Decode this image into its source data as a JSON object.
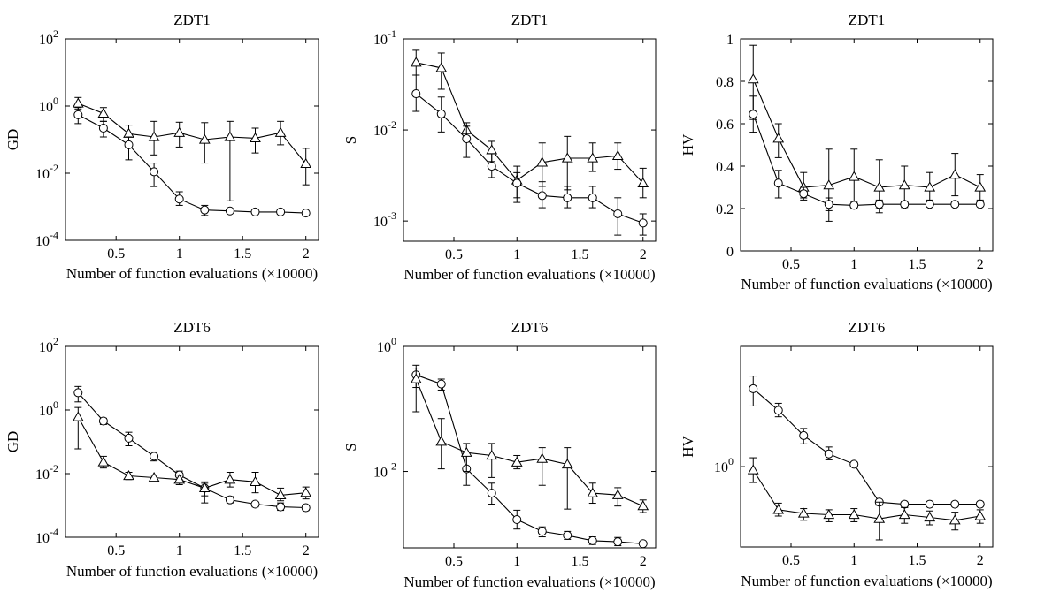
{
  "chart_data": [
    {
      "type": "line",
      "title": "ZDT1",
      "xlabel": "Number of function evaluations (×10000)",
      "ylabel": "GD",
      "yscale": "log",
      "xlim": [
        0.1,
        2.1
      ],
      "ylim": [
        0.0001,
        100
      ],
      "xticks": [
        {
          "v": 0.5,
          "label": "0.5"
        },
        {
          "v": 1,
          "label": "1"
        },
        {
          "v": 1.5,
          "label": "1.5"
        },
        {
          "v": 2,
          "label": "2"
        }
      ],
      "yticks": [
        {
          "v": 0.0001,
          "base": "10",
          "exp": "-4"
        },
        {
          "v": 0.01,
          "base": "10",
          "exp": "-2"
        },
        {
          "v": 1,
          "base": "10",
          "exp": "0"
        },
        {
          "v": 100,
          "base": "10",
          "exp": "2"
        }
      ],
      "x": [
        0.2,
        0.4,
        0.6,
        0.8,
        1.0,
        1.2,
        1.4,
        1.6,
        1.8,
        2.0
      ],
      "series": [
        {
          "marker": "triangle",
          "values": [
            1.2,
            0.6,
            0.15,
            0.12,
            0.16,
            0.1,
            0.12,
            0.11,
            0.16,
            0.019
          ],
          "err_low": [
            0.8,
            0.35,
            0.08,
            0.035,
            0.06,
            0.02,
            0.0015,
            0.04,
            0.07,
            0.0045
          ],
          "err_high": [
            1.8,
            0.9,
            0.27,
            0.35,
            0.33,
            0.32,
            0.35,
            0.22,
            0.35,
            0.055
          ]
        },
        {
          "marker": "circle",
          "values": [
            0.55,
            0.22,
            0.07,
            0.011,
            0.0017,
            0.0008,
            0.00075,
            0.0007,
            0.0007,
            0.00065
          ],
          "err_low": [
            0.3,
            0.12,
            0.025,
            0.004,
            0.0011,
            0.00055,
            0.00067,
            0.00065,
            0.00065,
            0.0006
          ],
          "err_high": [
            0.9,
            0.35,
            0.12,
            0.02,
            0.0028,
            0.0011,
            0.00085,
            0.00075,
            0.00075,
            0.0007
          ]
        }
      ]
    },
    {
      "type": "line",
      "title": "ZDT1",
      "xlabel": "Number of function evaluations (×10000)",
      "ylabel": "S",
      "yscale": "log",
      "xlim": [
        0.1,
        2.1
      ],
      "ylim": [
        0.0006,
        0.1
      ],
      "xticks": [
        {
          "v": 0.5,
          "label": "0.5"
        },
        {
          "v": 1,
          "label": "1"
        },
        {
          "v": 1.5,
          "label": "1.5"
        },
        {
          "v": 2,
          "label": "2"
        }
      ],
      "yticks": [
        {
          "v": 0.001,
          "base": "10",
          "exp": "-3"
        },
        {
          "v": 0.01,
          "base": "10",
          "exp": "-2"
        },
        {
          "v": 0.1,
          "base": "10",
          "exp": "-1"
        }
      ],
      "x": [
        0.2,
        0.4,
        0.6,
        0.8,
        1.0,
        1.2,
        1.4,
        1.6,
        1.8,
        2.0
      ],
      "series": [
        {
          "marker": "triangle",
          "values": [
            0.055,
            0.048,
            0.01,
            0.006,
            0.0028,
            0.0044,
            0.0049,
            0.0049,
            0.0052,
            0.0026
          ],
          "err_low": [
            0.04,
            0.028,
            0.0078,
            0.0045,
            0.0018,
            0.0024,
            0.0022,
            0.0035,
            0.0037,
            0.0018
          ],
          "err_high": [
            0.075,
            0.07,
            0.012,
            0.0075,
            0.004,
            0.0072,
            0.0085,
            0.0072,
            0.0072,
            0.0038
          ]
        },
        {
          "marker": "circle",
          "values": [
            0.025,
            0.015,
            0.008,
            0.004,
            0.0026,
            0.0019,
            0.0018,
            0.0018,
            0.0012,
            0.00095
          ],
          "err_low": [
            0.016,
            0.0095,
            0.005,
            0.003,
            0.0016,
            0.0014,
            0.0014,
            0.0014,
            0.0007,
            0.0007
          ],
          "err_high": [
            0.04,
            0.023,
            0.011,
            0.0055,
            0.0034,
            0.0027,
            0.0024,
            0.0024,
            0.0018,
            0.0012
          ]
        }
      ]
    },
    {
      "type": "line",
      "title": "ZDT1",
      "xlabel": "Number of function evaluations (×10000)",
      "ylabel": "HV",
      "yscale": "linear",
      "xlim": [
        0.1,
        2.1
      ],
      "ylim": [
        0,
        1
      ],
      "xticks": [
        {
          "v": 0.5,
          "label": "0.5"
        },
        {
          "v": 1,
          "label": "1"
        },
        {
          "v": 1.5,
          "label": "1.5"
        },
        {
          "v": 2,
          "label": "2"
        }
      ],
      "yticks": [
        {
          "v": 0,
          "label": "0"
        },
        {
          "v": 0.2,
          "label": "0.2"
        },
        {
          "v": 0.4,
          "label": "0.4"
        },
        {
          "v": 0.6,
          "label": "0.6"
        },
        {
          "v": 0.8,
          "label": "0.8"
        },
        {
          "v": 1,
          "label": "1"
        }
      ],
      "x": [
        0.2,
        0.4,
        0.6,
        0.8,
        1.0,
        1.2,
        1.4,
        1.6,
        1.8,
        2.0
      ],
      "series": [
        {
          "marker": "triangle",
          "values": [
            0.81,
            0.53,
            0.3,
            0.31,
            0.35,
            0.3,
            0.31,
            0.3,
            0.36,
            0.3
          ],
          "err_low": [
            0.62,
            0.44,
            0.25,
            0.14,
            0.22,
            0.18,
            0.23,
            0.24,
            0.26,
            0.24
          ],
          "err_high": [
            0.97,
            0.6,
            0.37,
            0.48,
            0.48,
            0.43,
            0.4,
            0.37,
            0.46,
            0.36
          ]
        },
        {
          "marker": "circle",
          "values": [
            0.645,
            0.32,
            0.27,
            0.22,
            0.215,
            0.22,
            0.22,
            0.22,
            0.22,
            0.22
          ],
          "err_low": [
            0.56,
            0.25,
            0.24,
            0.19,
            0.2,
            0.2,
            0.205,
            0.21,
            0.21,
            0.21
          ],
          "err_high": [
            0.73,
            0.38,
            0.3,
            0.25,
            0.23,
            0.24,
            0.235,
            0.23,
            0.23,
            0.23
          ]
        }
      ]
    },
    {
      "type": "line",
      "title": "ZDT6",
      "xlabel": "Number of function evaluations (×10000)",
      "ylabel": "GD",
      "yscale": "log",
      "xlim": [
        0.1,
        2.1
      ],
      "ylim": [
        0.0001,
        100
      ],
      "xticks": [
        {
          "v": 0.5,
          "label": "0.5"
        },
        {
          "v": 1,
          "label": "1"
        },
        {
          "v": 1.5,
          "label": "1.5"
        },
        {
          "v": 2,
          "label": "2"
        }
      ],
      "yticks": [
        {
          "v": 0.0001,
          "base": "10",
          "exp": "-4"
        },
        {
          "v": 0.01,
          "base": "10",
          "exp": "-2"
        },
        {
          "v": 1,
          "base": "10",
          "exp": "0"
        },
        {
          "v": 100,
          "base": "10",
          "exp": "2"
        }
      ],
      "x": [
        0.2,
        0.4,
        0.6,
        0.8,
        1.0,
        1.2,
        1.4,
        1.6,
        1.8,
        2.0
      ],
      "series": [
        {
          "marker": "circle",
          "values": [
            3.5,
            0.45,
            0.13,
            0.035,
            0.009,
            0.0035,
            0.0015,
            0.0011,
            0.0009,
            0.00085
          ],
          "err_low": [
            1.8,
            0.35,
            0.075,
            0.025,
            0.0065,
            0.002,
            0.0012,
            0.0009,
            0.0007,
            0.0007
          ],
          "err_high": [
            5.5,
            0.55,
            0.2,
            0.048,
            0.012,
            0.005,
            0.0019,
            0.0013,
            0.0012,
            0.001
          ]
        },
        {
          "marker": "triangle",
          "values": [
            0.6,
            0.023,
            0.0085,
            0.0075,
            0.0065,
            0.0035,
            0.0065,
            0.0055,
            0.0021,
            0.0025
          ],
          "err_low": [
            0.06,
            0.015,
            0.0065,
            0.006,
            0.0045,
            0.0012,
            0.0038,
            0.0025,
            0.0014,
            0.0016
          ],
          "err_high": [
            1.2,
            0.035,
            0.011,
            0.009,
            0.009,
            0.0055,
            0.011,
            0.011,
            0.0035,
            0.0038
          ]
        }
      ]
    },
    {
      "type": "line",
      "title": "ZDT6",
      "xlabel": "Number of function evaluations (×10000)",
      "ylabel": "S",
      "yscale": "log",
      "xlim": [
        0.1,
        2.1
      ],
      "ylim": [
        0.0006,
        1
      ],
      "xticks": [
        {
          "v": 0.5,
          "label": "0.5"
        },
        {
          "v": 1,
          "label": "1"
        },
        {
          "v": 1.5,
          "label": "1.5"
        },
        {
          "v": 2,
          "label": "2"
        }
      ],
      "yticks": [
        {
          "v": 0.01,
          "base": "10",
          "exp": "-2"
        },
        {
          "v": 1,
          "base": "10",
          "exp": "0"
        }
      ],
      "x": [
        0.2,
        0.4,
        0.6,
        0.8,
        1.0,
        1.2,
        1.4,
        1.6,
        1.8,
        2.0
      ],
      "series": [
        {
          "marker": "circle",
          "values": [
            0.35,
            0.25,
            0.011,
            0.0045,
            0.0017,
            0.0011,
            0.00095,
            0.00078,
            0.00075,
            0.0007
          ],
          "err_low": [
            0.22,
            0.2,
            0.006,
            0.003,
            0.0012,
            0.0009,
            0.00082,
            0.00068,
            0.00065,
            0.00065
          ],
          "err_high": [
            0.5,
            0.3,
            0.02,
            0.0065,
            0.0024,
            0.0013,
            0.0011,
            0.0009,
            0.00088,
            0.00075
          ]
        },
        {
          "marker": "triangle",
          "values": [
            0.3,
            0.03,
            0.02,
            0.018,
            0.014,
            0.016,
            0.013,
            0.0045,
            0.0042,
            0.0028
          ],
          "err_low": [
            0.09,
            0.011,
            0.01,
            0.008,
            0.011,
            0.006,
            0.0025,
            0.0031,
            0.0028,
            0.0022
          ],
          "err_high": [
            0.45,
            0.07,
            0.028,
            0.028,
            0.018,
            0.024,
            0.024,
            0.0065,
            0.0055,
            0.0035
          ]
        }
      ]
    },
    {
      "type": "line",
      "title": "ZDT6",
      "xlabel": "Number of function evaluations (×10000)",
      "ylabel": "HV",
      "yscale": "log",
      "xlim": [
        0.1,
        2.1
      ],
      "ylim": [
        0.19,
        12
      ],
      "xticks": [
        {
          "v": 0.5,
          "label": "0.5"
        },
        {
          "v": 1,
          "label": "1"
        },
        {
          "v": 1.5,
          "label": "1.5"
        },
        {
          "v": 2,
          "label": "2"
        }
      ],
      "yticks": [
        {
          "v": 1,
          "base": "10",
          "exp": "0"
        }
      ],
      "x": [
        0.2,
        0.4,
        0.6,
        0.8,
        1.0,
        1.2,
        1.4,
        1.6,
        1.8,
        2.0
      ],
      "series": [
        {
          "marker": "circle",
          "values": [
            5.0,
            3.2,
            1.9,
            1.3,
            1.05,
            0.48,
            0.46,
            0.46,
            0.46,
            0.46
          ],
          "err_low": [
            3.5,
            2.8,
            1.6,
            1.15,
            1.0,
            0.45,
            0.43,
            0.44,
            0.44,
            0.44
          ],
          "err_high": [
            6.5,
            3.7,
            2.2,
            1.5,
            1.1,
            0.5,
            0.48,
            0.48,
            0.48,
            0.48
          ]
        },
        {
          "marker": "triangle",
          "values": [
            0.93,
            0.41,
            0.38,
            0.37,
            0.37,
            0.34,
            0.37,
            0.35,
            0.33,
            0.36
          ],
          "err_low": [
            0.72,
            0.36,
            0.33,
            0.32,
            0.32,
            0.22,
            0.31,
            0.3,
            0.27,
            0.31
          ],
          "err_high": [
            1.2,
            0.47,
            0.42,
            0.41,
            0.42,
            0.48,
            0.43,
            0.4,
            0.39,
            0.41
          ]
        }
      ]
    }
  ]
}
